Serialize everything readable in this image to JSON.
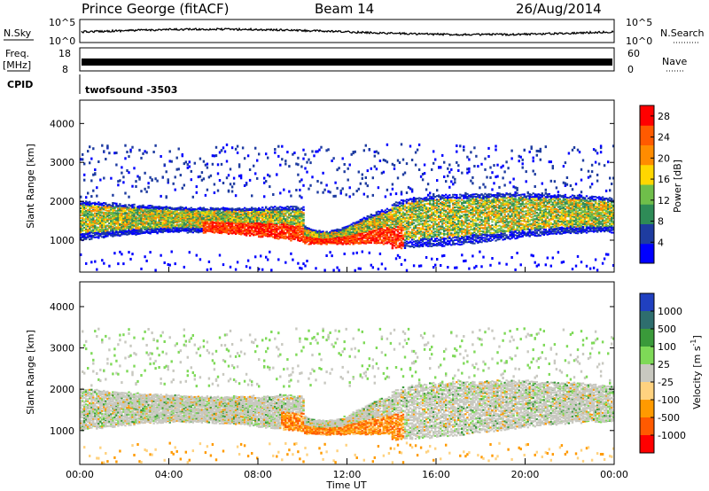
{
  "header": {
    "station": "Prince George (fitACF)",
    "beam": "Beam 14",
    "date": "26/Aug/2014"
  },
  "top_panels": {
    "nsky_label": "N.Sky",
    "nsearch_label": "N.Search",
    "nsky_ticks": [
      "10^5",
      "10^0"
    ],
    "nsky_right_ticks": [
      "10^5",
      "10^0"
    ],
    "freq_label": "Freq.",
    "freq_unit": "[MHz]",
    "freq_ticks": [
      "18",
      "8"
    ],
    "nave_label": "Nave",
    "nave_ticks": [
      "60",
      "0"
    ],
    "cpid_label": "CPID",
    "cpid_value": "twofsound -3503"
  },
  "chart_data": [
    {
      "type": "heatmap",
      "parameter": "Power",
      "ylabel": "Slant Range [km]",
      "xlabel": "",
      "ylim": [
        180,
        4600
      ],
      "yticks": [
        1000,
        2000,
        3000,
        4000
      ],
      "xticks": [
        "00:00",
        "04:00",
        "08:00",
        "12:00",
        "16:00",
        "20:00",
        "00:00"
      ],
      "colorbar": {
        "label": "Power [dB]",
        "ticks": [
          4,
          8,
          12,
          16,
          20,
          24,
          28
        ],
        "range": [
          0,
          30
        ],
        "colors": [
          "#0000ff",
          "#1e3ca0",
          "#2e8b57",
          "#6fbe4a",
          "#ffd700",
          "#ff8c00",
          "#ff5a00",
          "#ff0000"
        ]
      }
    },
    {
      "type": "heatmap",
      "parameter": "Velocity",
      "ylabel": "Slant Range [km]",
      "xlabel": "Time UT",
      "ylim": [
        180,
        4600
      ],
      "yticks": [
        1000,
        2000,
        3000,
        4000
      ],
      "xticks": [
        "00:00",
        "04:00",
        "08:00",
        "12:00",
        "16:00",
        "20:00",
        "00:00"
      ],
      "colorbar": {
        "label_main": "Velocity",
        "label_unit": "[m s",
        "label_sup": "-1",
        "label_close": "]",
        "ticks": [
          "1000",
          "500",
          "100",
          "25",
          "-25",
          "-100",
          "-500",
          "-1000"
        ],
        "colors": [
          "#2040c0",
          "#2e6e6e",
          "#3a9a3a",
          "#7ed957",
          "#c8c8c0",
          "#ffd27f",
          "#ff9a00",
          "#ff5a00",
          "#ff0000"
        ]
      }
    }
  ]
}
